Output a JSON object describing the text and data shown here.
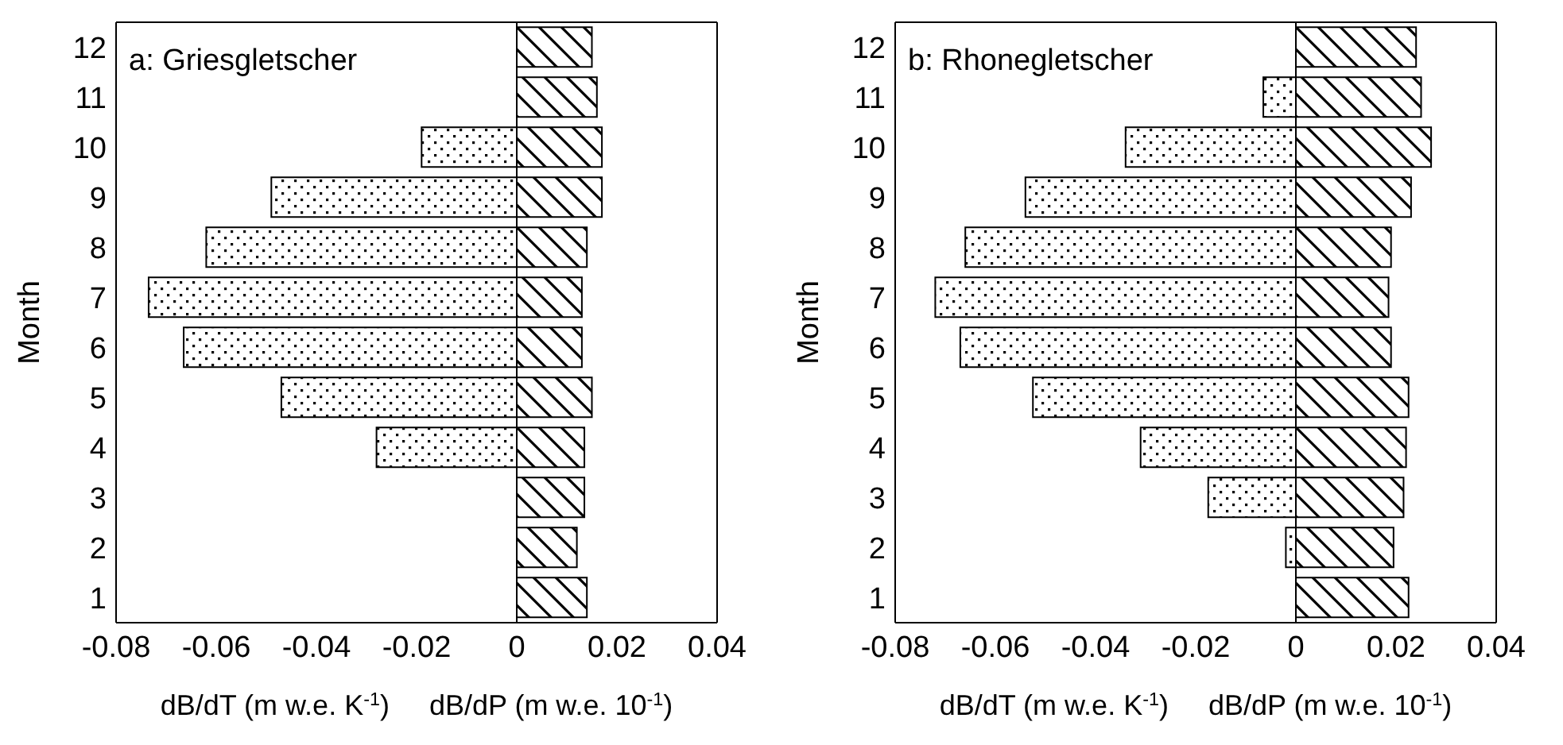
{
  "chart_data": [
    {
      "type": "bar",
      "orientation": "horizontal",
      "stacked": true,
      "title": "a:  Griesgletscher",
      "ylabel": "Month",
      "xlabel": "dB/dT (m w.e. K$^{-1}$)     dB/dP (m w.e. 10$^{-1}$)",
      "categories": [
        "12",
        "11",
        "10",
        "9",
        "8",
        "7",
        "6",
        "5",
        "4",
        "3",
        "2",
        "1"
      ],
      "series": [
        {
          "color": "#000000",
          "values": [
            null,
            null,
            -0.019,
            -0.049,
            -0.062,
            -0.0735,
            -0.0665,
            -0.047,
            -0.028,
            null,
            null,
            null
          ]
        },
        {
          "color": "#000000",
          "values": [
            0.015,
            0.016,
            0.017,
            0.017,
            0.014,
            0.013,
            0.013,
            0.015,
            0.0135,
            0.0135,
            0.012,
            0.014
          ]
        }
      ],
      "xlim": [
        -0.08,
        0.04
      ],
      "xticks": [
        -0.08,
        -0.06,
        -0.04,
        -0.02,
        0,
        0.02,
        0.04
      ],
      "grid": false,
      "legend": false,
      "ref_lines": [
        {
          "axis": "x",
          "value": 0
        }
      ]
    },
    {
      "type": "bar",
      "orientation": "horizontal",
      "stacked": true,
      "title": "b:  Rhonegletscher",
      "ylabel": "Month",
      "xlabel": "dB/dT (m w.e. K$^{-1}$)     dB/dP (m w.e. 10$^{-1}$)",
      "categories": [
        "12",
        "11",
        "10",
        "9",
        "8",
        "7",
        "6",
        "5",
        "4",
        "3",
        "2",
        "1"
      ],
      "series": [
        {
          "color": "#000000",
          "values": [
            null,
            -0.0065,
            -0.034,
            -0.054,
            -0.066,
            -0.072,
            -0.067,
            -0.0525,
            -0.031,
            -0.0175,
            -0.002,
            null
          ]
        },
        {
          "color": "#000000",
          "values": [
            0.024,
            0.025,
            0.027,
            0.023,
            0.019,
            0.0185,
            0.019,
            0.0225,
            0.022,
            0.0215,
            0.0195,
            0.0225
          ]
        }
      ],
      "xlim": [
        -0.08,
        0.04
      ],
      "xticks": [
        -0.08,
        -0.06,
        -0.04,
        -0.02,
        0,
        0.02,
        0.04
      ],
      "grid": false,
      "legend": false,
      "ref_lines": [
        {
          "axis": "x",
          "value": 0
        }
      ]
    }
  ]
}
